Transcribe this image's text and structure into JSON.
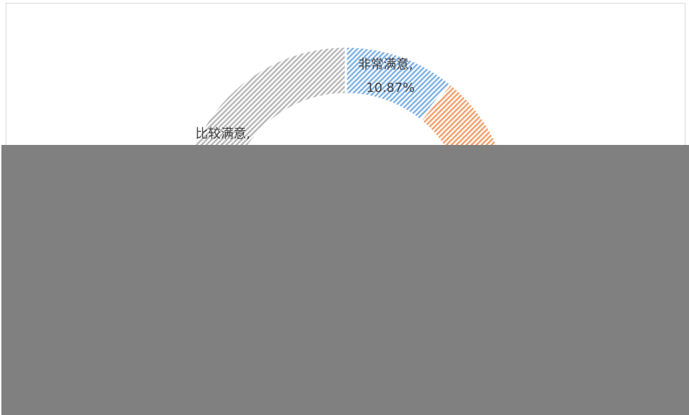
{
  "chart_data": {
    "type": "donut",
    "categories": [
      "非常满意",
      null,
      "比较满意"
    ],
    "values": [
      10.87,
      20,
      31
    ],
    "value_labels": [
      "10.87%",
      null,
      null
    ],
    "colors": [
      "#7fb2e5",
      "#f4a06b",
      "#b8b8b8"
    ]
  }
}
